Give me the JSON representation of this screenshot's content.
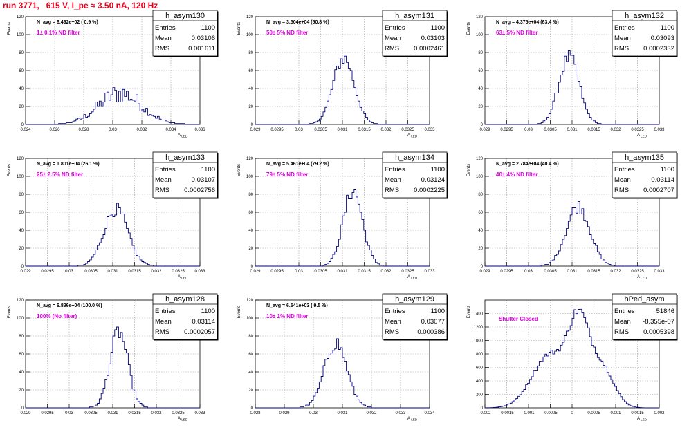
{
  "run_title": "run 3771,   615 V, I_pe ≈ 3.50 nA, 120 Hz",
  "stats_labels": {
    "entries": "Entries",
    "mean": "Mean",
    "rms": "RMS"
  },
  "colors": {
    "histogram": "#000080",
    "annotation": "#e000e0",
    "title": "#e8001c",
    "grid": "#9a9a9a"
  },
  "chart_data": [
    {
      "type": "histogram",
      "name": "h_asym130",
      "navg": "N_avg = 6.492e+02 (  0.9 %)",
      "annotation": "1± 0.1% ND filter",
      "stats": {
        "entries": "1100",
        "mean": "0.03106",
        "rms": "0.001611"
      },
      "ylabel": "Events",
      "xlabel": "A_LED",
      "xlim": [
        0.024,
        0.037
      ],
      "ylim": [
        0,
        120
      ],
      "xticks": [
        "0.024",
        "0.026",
        "0.028",
        "0.03",
        "0.032",
        "0.034",
        "0.036"
      ],
      "yticks": [
        "0",
        "20",
        "40",
        "60",
        "80",
        "100",
        "120"
      ],
      "center": 0.03106,
      "sigma": 0.001611,
      "peak": 42,
      "shape": "broad"
    },
    {
      "type": "histogram",
      "name": "h_asym131",
      "navg": "N_avg = 3.504e+04 (50.8 %)",
      "annotation": "50± 5% ND filter",
      "stats": {
        "entries": "1100",
        "mean": "0.03103",
        "rms": "0.0002461"
      },
      "ylabel": "Events",
      "xlabel": "A_LED",
      "xlim": [
        0.029,
        0.033
      ],
      "ylim": [
        0,
        120
      ],
      "xticks": [
        "0.029",
        "0.0295",
        "0.03",
        "0.0305",
        "0.031",
        "0.0315",
        "0.032",
        "0.0325",
        "0.033"
      ],
      "yticks": [
        "0",
        "20",
        "40",
        "60",
        "80",
        "100",
        "120"
      ],
      "center": 0.03103,
      "sigma": 0.000246,
      "peak": 79,
      "shape": "peak"
    },
    {
      "type": "histogram",
      "name": "h_asym132",
      "navg": "N_avg = 4.375e+04 (63.4 %)",
      "annotation": "63± 5% ND filter",
      "stats": {
        "entries": "1100",
        "mean": "0.03093",
        "rms": "0.0002332"
      },
      "ylabel": "Events",
      "xlabel": "A_LED",
      "xlim": [
        0.029,
        0.033
      ],
      "ylim": [
        0,
        120
      ],
      "xticks": [
        "0.029",
        "0.0295",
        "0.03",
        "0.0305",
        "0.031",
        "0.0315",
        "0.032",
        "0.0325",
        "0.033"
      ],
      "yticks": [
        "0",
        "20",
        "40",
        "60",
        "80",
        "100",
        "120"
      ],
      "center": 0.03093,
      "sigma": 0.000233,
      "peak": 80,
      "shape": "peak"
    },
    {
      "type": "histogram",
      "name": "h_asym133",
      "navg": "N_avg = 1.801e+04 (26.1 %)",
      "annotation": "25± 2.5% ND filter",
      "stats": {
        "entries": "1100",
        "mean": "0.03107",
        "rms": "0.0002756"
      },
      "ylabel": "Events",
      "xlabel": "A_LED",
      "xlim": [
        0.029,
        0.033
      ],
      "ylim": [
        0,
        120
      ],
      "xticks": [
        "0.029",
        "0.0295",
        "0.03",
        "0.0305",
        "0.031",
        "0.0315",
        "0.032",
        "0.0325",
        "0.033"
      ],
      "yticks": [
        "0",
        "20",
        "40",
        "60",
        "80",
        "100",
        "120"
      ],
      "center": 0.03107,
      "sigma": 0.000276,
      "peak": 68,
      "shape": "peak"
    },
    {
      "type": "histogram",
      "name": "h_asym134",
      "navg": "N_avg = 5.461e+04 (79.2 %)",
      "annotation": "79± 5% ND filter",
      "stats": {
        "entries": "1100",
        "mean": "0.03124",
        "rms": "0.0002225"
      },
      "ylabel": "Events",
      "xlabel": "A_LED",
      "xlim": [
        0.029,
        0.033
      ],
      "ylim": [
        0,
        120
      ],
      "xticks": [
        "0.029",
        "0.0295",
        "0.03",
        "0.0305",
        "0.031",
        "0.0315",
        "0.032",
        "0.0325",
        "0.033"
      ],
      "yticks": [
        "0",
        "20",
        "40",
        "60",
        "80",
        "100",
        "120"
      ],
      "center": 0.03124,
      "sigma": 0.000222,
      "peak": 91,
      "shape": "peak"
    },
    {
      "type": "histogram",
      "name": "h_asym135",
      "navg": "N_avg = 2.784e+04 (40.4 %)",
      "annotation": "40± 4% ND filter",
      "stats": {
        "entries": "1100",
        "mean": "0.03114",
        "rms": "0.0002707"
      },
      "ylabel": "Events",
      "xlabel": "A_LED",
      "xlim": [
        0.029,
        0.033
      ],
      "ylim": [
        0,
        120
      ],
      "xticks": [
        "0.029",
        "0.0295",
        "0.03",
        "0.0305",
        "0.031",
        "0.0315",
        "0.032",
        "0.0325",
        "0.033"
      ],
      "yticks": [
        "0",
        "20",
        "40",
        "60",
        "80",
        "100",
        "120"
      ],
      "center": 0.03114,
      "sigma": 0.000271,
      "peak": 72,
      "shape": "peak"
    },
    {
      "type": "histogram",
      "name": "h_asym128",
      "navg": "N_avg = 6.896e+04 (100.0 %)",
      "annotation": "100% (No filter)",
      "stats": {
        "entries": "1100",
        "mean": "0.03114",
        "rms": "0.0002057"
      },
      "ylabel": "Events",
      "xlabel": "A_LED",
      "xlim": [
        0.029,
        0.033
      ],
      "ylim": [
        0,
        120
      ],
      "xticks": [
        "0.029",
        "0.0295",
        "0.03",
        "0.0305",
        "0.031",
        "0.0315",
        "0.032",
        "0.0325",
        "0.033"
      ],
      "yticks": [
        "0",
        "20",
        "40",
        "60",
        "80",
        "100",
        "120"
      ],
      "center": 0.03114,
      "sigma": 0.000206,
      "peak": 91,
      "shape": "peak"
    },
    {
      "type": "histogram",
      "name": "h_asym129",
      "navg": "N_avg = 6.541e+03 (  9.5 %)",
      "annotation": "10± 1% ND filter",
      "stats": {
        "entries": "1100",
        "mean": "0.03077",
        "rms": "0.000386"
      },
      "ylabel": "Events",
      "xlabel": "A_LED",
      "xlim": [
        0.028,
        0.034
      ],
      "ylim": [
        0,
        120
      ],
      "xticks": [
        "0.028",
        "0.029",
        "0.03",
        "0.031",
        "0.032",
        "0.033",
        "0.034"
      ],
      "yticks": [
        "0",
        "20",
        "40",
        "60",
        "80",
        "100",
        "120"
      ],
      "center": 0.03077,
      "sigma": 0.000386,
      "peak": 78,
      "shape": "peak"
    },
    {
      "type": "histogram",
      "name": "hPed_asym",
      "navg": "",
      "annotation": "Shutter Closed",
      "stats": {
        "entries": "51846",
        "mean": "-8.355e-07",
        "rms": "0.0005398"
      },
      "ylabel": "Events",
      "xlabel": "A_LED",
      "xlim": [
        -0.002,
        0.002
      ],
      "ylim": [
        0,
        1600
      ],
      "xticks": [
        "-0.002",
        "-0.0015",
        "-0.001",
        "-0.0005",
        "0",
        "0.0005",
        "0.001",
        "0.0015",
        "0.002"
      ],
      "yticks": [
        "0",
        "200",
        "400",
        "600",
        "800",
        "1000",
        "1200",
        "1400"
      ],
      "center": 0.0,
      "sigma": 0.00054,
      "peak": 1510,
      "shape": "pedestal"
    }
  ]
}
